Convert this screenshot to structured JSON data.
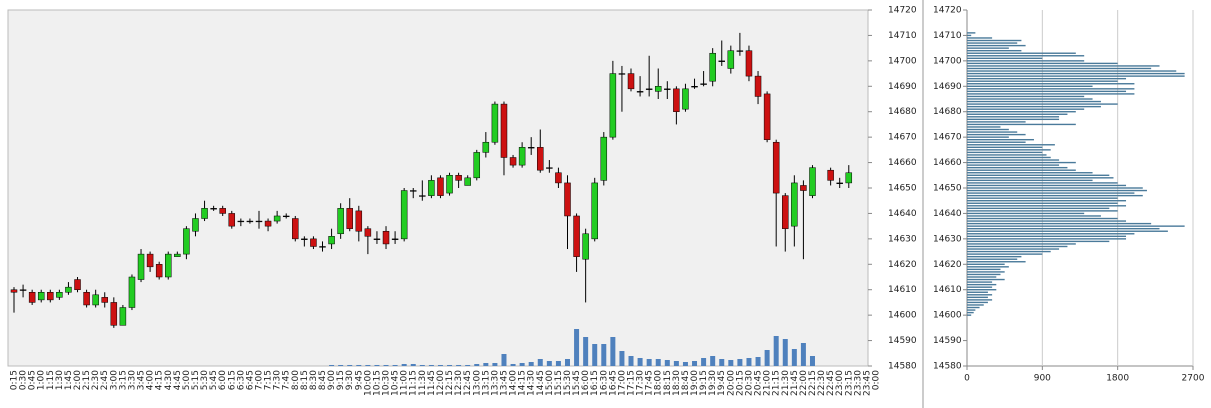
{
  "chart_data": [
    {
      "type": "candlestick",
      "categories": [
        "0:15",
        "0:30",
        "0:45",
        "1:00",
        "1:15",
        "1:30",
        "1:45",
        "2:00",
        "2:15",
        "2:30",
        "2:45",
        "3:00",
        "3:15",
        "3:30",
        "3:45",
        "4:00",
        "4:15",
        "4:30",
        "4:45",
        "5:00",
        "5:15",
        "5:30",
        "5:45",
        "6:00",
        "6:15",
        "6:30",
        "6:45",
        "7:00",
        "7:15",
        "7:30",
        "7:45",
        "8:00",
        "8:15",
        "8:30",
        "8:45",
        "9:00",
        "9:15",
        "9:30",
        "9:45",
        "10:00",
        "10:15",
        "10:30",
        "10:45",
        "11:00",
        "11:15",
        "11:30",
        "11:45",
        "12:00",
        "12:15",
        "12:30",
        "12:45",
        "13:00",
        "13:15",
        "13:30",
        "13:45",
        "14:00",
        "14:15",
        "14:30",
        "14:45",
        "15:00",
        "15:15",
        "15:30",
        "15:45",
        "16:00",
        "16:15",
        "16:30",
        "16:45",
        "17:00",
        "17:15",
        "17:30",
        "17:45",
        "18:00",
        "18:15",
        "18:30",
        "18:45",
        "19:00",
        "19:15",
        "19:30",
        "19:45",
        "20:00",
        "20:15",
        "20:30",
        "20:45",
        "21:00",
        "21:15",
        "21:30",
        "21:45",
        "22:00",
        "22:15",
        "22:30",
        "22:45",
        "23:00",
        "23:15",
        "23:30",
        "23:45",
        "0:00"
      ],
      "open": [
        14610,
        14610,
        14609,
        14606,
        14609,
        14607,
        14609,
        14614,
        14609,
        14604,
        14607,
        14605,
        14596,
        14603,
        14614,
        14624,
        14620,
        14615,
        14623,
        14624,
        14633,
        14638,
        14642,
        14642,
        14640,
        14637,
        14637,
        14637,
        14637,
        14637,
        14639,
        14638,
        14630,
        14630,
        14627,
        14628,
        14632,
        14642,
        14641,
        14634,
        14630,
        14633,
        14630,
        14630,
        14649,
        14647,
        14647,
        14654,
        14648,
        14655,
        14651,
        14654,
        14664,
        14668,
        14683,
        14662,
        14659,
        14666,
        14666,
        14658,
        14656,
        14652,
        14639,
        14622,
        14630,
        14653,
        14670,
        14695,
        14695,
        14688,
        14689,
        14688,
        14689,
        14689,
        14681,
        14690,
        14691,
        14692,
        14700,
        14697,
        14704,
        14704,
        14694,
        14687,
        14668,
        14647,
        14635,
        14651,
        14647,
        null,
        14657,
        14652,
        14652,
        null,
        null,
        null
      ],
      "high": [
        14611,
        14612,
        14610,
        14610,
        14610,
        14610,
        14613,
        14615,
        14610,
        14610,
        14609,
        14607,
        14604,
        14616,
        14626,
        14625,
        14621,
        14625,
        14625,
        14635,
        14640,
        14645,
        14643,
        14643,
        14641,
        14638,
        14638,
        14641,
        14638,
        14641,
        14640,
        14639,
        14631,
        14631,
        14629,
        14634,
        14644,
        14646,
        14643,
        14635,
        14633,
        14635,
        14633,
        14650,
        14650,
        14653,
        14655,
        14655,
        14656,
        14656,
        14655,
        14665,
        14672,
        14684,
        14684,
        14663,
        14668,
        14670,
        14673,
        14661,
        14658,
        14655,
        14640,
        14634,
        14654,
        14672,
        14700,
        14698,
        14697,
        14694,
        14702,
        14697,
        14692,
        14690,
        14691,
        14693,
        14696,
        14705,
        14708,
        14706,
        14711,
        14706,
        14696,
        14688,
        14669,
        14648,
        14655,
        14653,
        14659,
        null,
        14658,
        14654,
        14659,
        null,
        null,
        null
      ],
      "low": [
        14601,
        14607,
        14604,
        14605,
        14605,
        14606,
        14608,
        14609,
        14603,
        14603,
        14603,
        14595,
        14596,
        14602,
        14613,
        14617,
        14614,
        14614,
        14623,
        14622,
        14631,
        14637,
        14641,
        14639,
        14634,
        14635,
        14636,
        14634,
        14633,
        14636,
        14638,
        14629,
        14627,
        14626,
        14625,
        14626,
        14630,
        14633,
        14629,
        14624,
        14628,
        14626,
        14628,
        14629,
        14646,
        14645,
        14646,
        14646,
        14647,
        14650,
        14651,
        14653,
        14662,
        14667,
        14655,
        14658,
        14658,
        14663,
        14656,
        14656,
        14650,
        14626,
        14617,
        14605,
        14629,
        14651,
        14669,
        14680,
        14688,
        14686,
        14686,
        14685,
        14685,
        14675,
        14680,
        14689,
        14690,
        14690,
        14698,
        14695,
        14702,
        14692,
        14683,
        14668,
        14627,
        14625,
        14627,
        14622,
        14646,
        null,
        14651,
        14650,
        14650,
        null,
        null,
        null
      ],
      "close": [
        14609,
        14610,
        14605,
        14609,
        14606,
        14609,
        14611,
        14610,
        14604,
        14608,
        14605,
        14596,
        14603,
        14615,
        14624,
        14619,
        14615,
        14624,
        14624,
        14634,
        14638,
        14642,
        14642,
        14640,
        14635,
        14637,
        14637,
        14637,
        14635,
        14639,
        14639,
        14630,
        14630,
        14627,
        14627,
        14631,
        14642,
        14634,
        14633,
        14631,
        14630,
        14628,
        14630,
        14649,
        14649,
        14647,
        14653,
        14647,
        14655,
        14653,
        14654,
        14664,
        14668,
        14683,
        14662,
        14659,
        14666,
        14666,
        14657,
        14658,
        14652,
        14639,
        14623,
        14632,
        14652,
        14670,
        14695,
        14695,
        14689,
        14688,
        14689,
        14690,
        14689,
        14680,
        14689,
        14690,
        14691,
        14703,
        14700,
        14704,
        14704,
        14694,
        14686,
        14669,
        14648,
        14634,
        14652,
        14649,
        14658,
        null,
        14653,
        14652,
        14656,
        null,
        null,
        null
      ],
      "volume": [
        0,
        0,
        0,
        0,
        0,
        0,
        0,
        0,
        0,
        0,
        0,
        0,
        0,
        0,
        0,
        0,
        0,
        0,
        0,
        0,
        0,
        0,
        0,
        0,
        0,
        0,
        0,
        0,
        0,
        0,
        0,
        0,
        0,
        0,
        0,
        1,
        1,
        1,
        1,
        1,
        1,
        1,
        1,
        2,
        2,
        1,
        1,
        1,
        1,
        1,
        1,
        2,
        3,
        3,
        12,
        2,
        3,
        4,
        7,
        5,
        5,
        7,
        37,
        29,
        22,
        22,
        29,
        15,
        10,
        8,
        7,
        7,
        6,
        5,
        4,
        5,
        8,
        10,
        7,
        6,
        7,
        8,
        9,
        16,
        30,
        27,
        17,
        23,
        10,
        0,
        0,
        0,
        0,
        0,
        0,
        0
      ],
      "up_color": "#22cc22",
      "down_color": "#cc1111",
      "volume_color": "#4f81bd",
      "background": "#f0f0f0",
      "ylim": [
        14580,
        14720
      ],
      "yticks": [
        14580,
        14590,
        14600,
        14610,
        14620,
        14630,
        14640,
        14650,
        14660,
        14670,
        14680,
        14690,
        14700,
        14710,
        14720
      ]
    },
    {
      "type": "bar",
      "orientation": "horizontal",
      "color": "#4a7a9a",
      "categories": [
        14711,
        14710,
        14709,
        14708,
        14707,
        14706,
        14705,
        14704,
        14703,
        14702,
        14701,
        14700,
        14699,
        14698,
        14697,
        14696,
        14695,
        14694,
        14693,
        14692,
        14691,
        14690,
        14689,
        14688,
        14687,
        14686,
        14685,
        14684,
        14683,
        14682,
        14681,
        14680,
        14679,
        14678,
        14677,
        14676,
        14675,
        14674,
        14673,
        14672,
        14671,
        14670,
        14669,
        14668,
        14667,
        14666,
        14665,
        14664,
        14663,
        14662,
        14661,
        14660,
        14659,
        14658,
        14657,
        14656,
        14655,
        14654,
        14653,
        14652,
        14651,
        14650,
        14649,
        14648,
        14647,
        14646,
        14645,
        14644,
        14643,
        14642,
        14641,
        14640,
        14639,
        14638,
        14637,
        14636,
        14635,
        14634,
        14633,
        14632,
        14631,
        14630,
        14629,
        14628,
        14627,
        14626,
        14625,
        14624,
        14623,
        14622,
        14621,
        14620,
        14619,
        14618,
        14617,
        14616,
        14615,
        14614,
        14613,
        14612,
        14611,
        14610,
        14609,
        14608,
        14607,
        14606,
        14605,
        14604,
        14603,
        14602,
        14601,
        14600
      ],
      "values": [
        100,
        50,
        300,
        650,
        600,
        700,
        500,
        650,
        1300,
        1400,
        900,
        1400,
        1800,
        2300,
        2200,
        2500,
        2600,
        2600,
        1900,
        1800,
        2000,
        1500,
        2000,
        1900,
        2000,
        1400,
        1500,
        1600,
        1800,
        1600,
        1400,
        1300,
        1200,
        1100,
        1100,
        700,
        1300,
        400,
        500,
        600,
        700,
        500,
        800,
        700,
        1050,
        900,
        1000,
        900,
        950,
        1000,
        1100,
        1300,
        1100,
        1200,
        1300,
        1500,
        1700,
        1750,
        1500,
        1800,
        1900,
        2100,
        2150,
        2000,
        2100,
        1800,
        1900,
        1800,
        1900,
        1700,
        1800,
        1400,
        1600,
        1800,
        1900,
        2200,
        2600,
        2300,
        2400,
        2000,
        1900,
        1900,
        1700,
        1300,
        1200,
        1100,
        1000,
        900,
        650,
        600,
        700,
        450,
        500,
        400,
        450,
        400,
        350,
        450,
        300,
        350,
        300,
        350,
        250,
        300,
        250,
        300,
        250,
        200,
        150,
        100,
        80,
        50
      ],
      "xlim": [
        0,
        2700
      ],
      "xticks": [
        0,
        900,
        1800,
        2700
      ],
      "ylim": [
        14580,
        14720
      ],
      "yticks": [
        14580,
        14590,
        14600,
        14610,
        14620,
        14630,
        14640,
        14650,
        14660,
        14670,
        14680,
        14690,
        14700,
        14710,
        14720
      ],
      "grid": true
    }
  ]
}
